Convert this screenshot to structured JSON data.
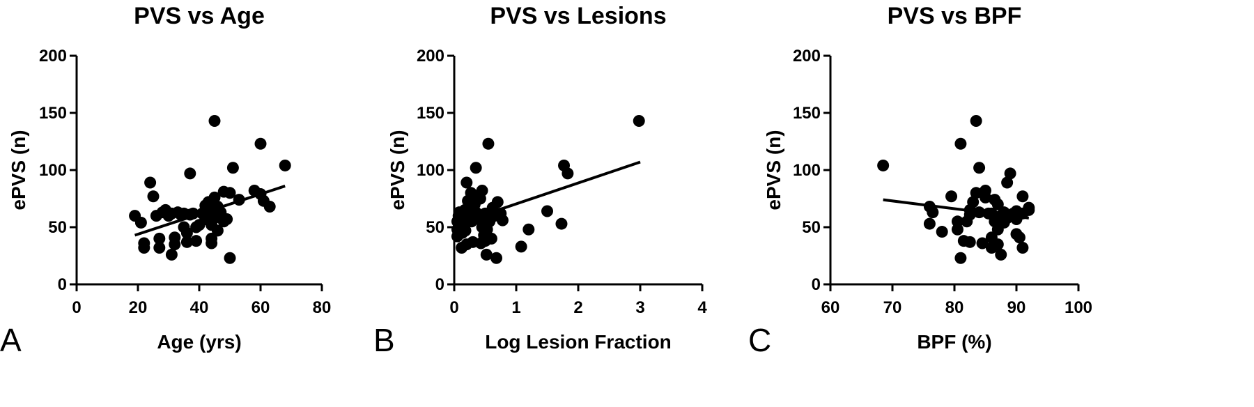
{
  "chart_data": [
    {
      "type": "scatter",
      "panel_label": "A",
      "title": "PVS vs Age",
      "xlabel": "Age (yrs)",
      "ylabel": "ePVS (n)",
      "xlim": [
        0,
        80
      ],
      "ylim": [
        0,
        200
      ],
      "xticks": [
        0,
        20,
        40,
        60,
        80
      ],
      "yticks": [
        0,
        50,
        100,
        150,
        200
      ],
      "grid": false,
      "points": [
        [
          19,
          60
        ],
        [
          21,
          54
        ],
        [
          22,
          36
        ],
        [
          22,
          32
        ],
        [
          24,
          89
        ],
        [
          25,
          77
        ],
        [
          26,
          60
        ],
        [
          27,
          40
        ],
        [
          27,
          32
        ],
        [
          28,
          63
        ],
        [
          29,
          65
        ],
        [
          30,
          60
        ],
        [
          31,
          62
        ],
        [
          31,
          26
        ],
        [
          32,
          35
        ],
        [
          32,
          41
        ],
        [
          33,
          63
        ],
        [
          34,
          61
        ],
        [
          35,
          62
        ],
        [
          35,
          50
        ],
        [
          36,
          45
        ],
        [
          36,
          37
        ],
        [
          37,
          97
        ],
        [
          37,
          61
        ],
        [
          38,
          62
        ],
        [
          39,
          50
        ],
        [
          39,
          38
        ],
        [
          40,
          52
        ],
        [
          41,
          62
        ],
        [
          42,
          57
        ],
        [
          42,
          69
        ],
        [
          43,
          72
        ],
        [
          43,
          66
        ],
        [
          44,
          52
        ],
        [
          44,
          64
        ],
        [
          44,
          40
        ],
        [
          44,
          36
        ],
        [
          45,
          143
        ],
        [
          45,
          76
        ],
        [
          45,
          58
        ],
        [
          46,
          68
        ],
        [
          46,
          47
        ],
        [
          47,
          63
        ],
        [
          48,
          55
        ],
        [
          48,
          81
        ],
        [
          49,
          57
        ],
        [
          50,
          80
        ],
        [
          50,
          23
        ],
        [
          51,
          102
        ],
        [
          53,
          74
        ],
        [
          58,
          82
        ],
        [
          60,
          123
        ],
        [
          60,
          79
        ],
        [
          61,
          73
        ],
        [
          63,
          68
        ],
        [
          68,
          104
        ]
      ],
      "fit_line": {
        "x": [
          19,
          68
        ],
        "y": [
          43,
          86
        ]
      }
    },
    {
      "type": "scatter",
      "panel_label": "B",
      "title": "PVS vs Lesions",
      "xlabel": "Log Lesion Fraction",
      "ylabel": "ePVS (n)",
      "xlim": [
        0,
        4
      ],
      "ylim": [
        0,
        200
      ],
      "xticks": [
        0,
        1,
        2,
        3,
        4
      ],
      "yticks": [
        0,
        50,
        100,
        150,
        200
      ],
      "grid": false,
      "points": [
        [
          0.05,
          42
        ],
        [
          0.05,
          48
        ],
        [
          0.05,
          55
        ],
        [
          0.07,
          60
        ],
        [
          0.08,
          63
        ],
        [
          0.1,
          50
        ],
        [
          0.1,
          58
        ],
        [
          0.12,
          32
        ],
        [
          0.13,
          45
        ],
        [
          0.15,
          62
        ],
        [
          0.15,
          52
        ],
        [
          0.17,
          65
        ],
        [
          0.18,
          47
        ],
        [
          0.2,
          89
        ],
        [
          0.2,
          60
        ],
        [
          0.2,
          35
        ],
        [
          0.22,
          73
        ],
        [
          0.25,
          58
        ],
        [
          0.25,
          68
        ],
        [
          0.27,
          80
        ],
        [
          0.28,
          55
        ],
        [
          0.3,
          62
        ],
        [
          0.3,
          37
        ],
        [
          0.32,
          78
        ],
        [
          0.33,
          70
        ],
        [
          0.35,
          102
        ],
        [
          0.35,
          63
        ],
        [
          0.37,
          60
        ],
        [
          0.4,
          57
        ],
        [
          0.42,
          75
        ],
        [
          0.43,
          36
        ],
        [
          0.45,
          82
        ],
        [
          0.45,
          50
        ],
        [
          0.48,
          43
        ],
        [
          0.5,
          62
        ],
        [
          0.5,
          38
        ],
        [
          0.52,
          26
        ],
        [
          0.53,
          48
        ],
        [
          0.55,
          123
        ],
        [
          0.57,
          55
        ],
        [
          0.6,
          40
        ],
        [
          0.62,
          67
        ],
        [
          0.65,
          60
        ],
        [
          0.68,
          23
        ],
        [
          0.7,
          72
        ],
        [
          0.75,
          62
        ],
        [
          0.78,
          56
        ],
        [
          1.08,
          33
        ],
        [
          1.2,
          48
        ],
        [
          1.5,
          64
        ],
        [
          1.73,
          53
        ],
        [
          1.77,
          104
        ],
        [
          1.83,
          97
        ],
        [
          2.98,
          143
        ]
      ],
      "fit_line": {
        "x": [
          0.05,
          3.0
        ],
        "y": [
          53,
          107
        ]
      }
    },
    {
      "type": "scatter",
      "panel_label": "C",
      "title": "PVS vs BPF",
      "xlabel": "BPF (%)",
      "ylabel": "ePVS (n)",
      "xlim": [
        60,
        100
      ],
      "ylim": [
        0,
        200
      ],
      "xticks": [
        60,
        70,
        80,
        90,
        100
      ],
      "yticks": [
        0,
        50,
        100,
        150,
        200
      ],
      "grid": false,
      "points": [
        [
          68.5,
          104
        ],
        [
          76,
          68
        ],
        [
          76,
          53
        ],
        [
          76.5,
          63
        ],
        [
          78,
          46
        ],
        [
          79.5,
          77
        ],
        [
          80.5,
          55
        ],
        [
          80.5,
          48
        ],
        [
          81,
          123
        ],
        [
          81,
          23
        ],
        [
          81.5,
          38
        ],
        [
          82,
          55
        ],
        [
          82.5,
          65
        ],
        [
          82.5,
          61
        ],
        [
          82.5,
          37
        ],
        [
          83,
          72
        ],
        [
          83.5,
          80
        ],
        [
          83.5,
          143
        ],
        [
          84,
          102
        ],
        [
          84,
          63
        ],
        [
          84.5,
          36
        ],
        [
          85,
          76
        ],
        [
          85,
          82
        ],
        [
          85.5,
          62
        ],
        [
          86,
          62
        ],
        [
          86,
          41
        ],
        [
          86,
          32
        ],
        [
          86.5,
          74
        ],
        [
          86.5,
          55
        ],
        [
          87,
          48
        ],
        [
          87,
          35
        ],
        [
          87,
          70
        ],
        [
          87.5,
          60
        ],
        [
          87.5,
          26
        ],
        [
          88,
          63
        ],
        [
          88,
          54
        ],
        [
          88.5,
          89
        ],
        [
          88.5,
          58
        ],
        [
          89,
          97
        ],
        [
          89.5,
          62
        ],
        [
          90,
          57
        ],
        [
          90,
          44
        ],
        [
          90,
          64
        ],
        [
          90.5,
          41
        ],
        [
          91,
          77
        ],
        [
          91,
          62
        ],
        [
          91,
          32
        ],
        [
          92,
          65
        ],
        [
          92,
          67
        ]
      ],
      "fit_line": {
        "x": [
          68.5,
          92
        ],
        "y": [
          74,
          58
        ]
      }
    }
  ]
}
